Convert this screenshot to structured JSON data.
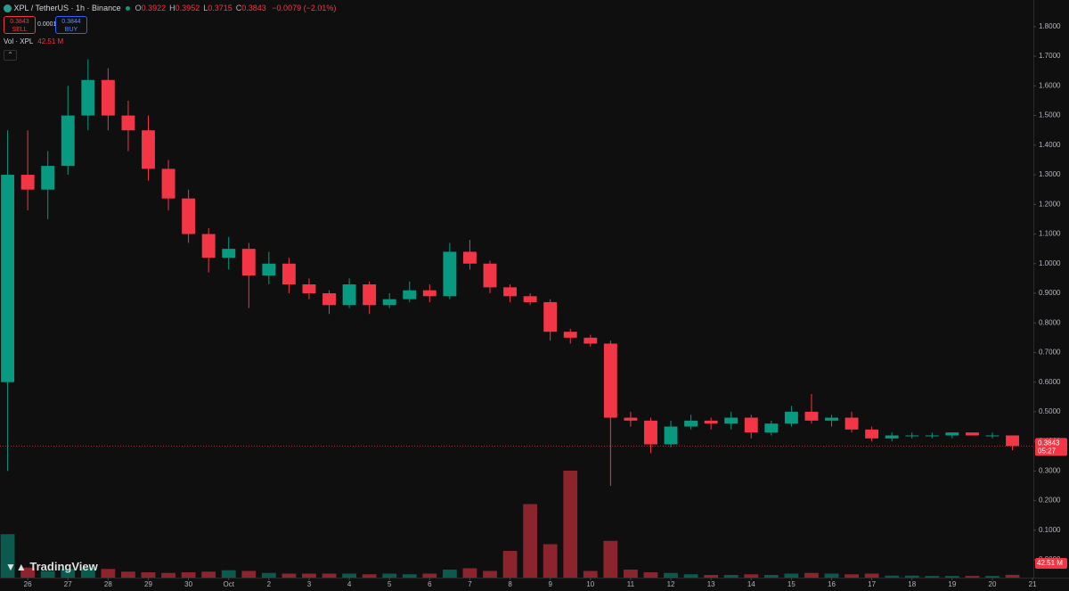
{
  "chart_data": {
    "type": "candlestick",
    "title": "XPL / TetherUS · 1h · Binance",
    "ohlc": [
      {
        "key": "O",
        "value": "0.3922"
      },
      {
        "key": "H",
        "value": "0.3952"
      },
      {
        "key": "L",
        "value": "0.3715"
      },
      {
        "key": "C",
        "value": "0.3843"
      }
    ],
    "change": "−0.0079 (−2.01%)",
    "sell": {
      "price": "0.3843",
      "label": "SELL"
    },
    "spread": "0.0001",
    "buy": {
      "price": "0.3844",
      "label": "BUY"
    },
    "volume_title": "Vol · XPL",
    "volume_value": "42.51 M",
    "last_price": "0.3843",
    "countdown": "05:27",
    "brand": "TradingView",
    "up_color": "#089981",
    "down_color": "#f23645",
    "x": [
      25.5,
      26,
      26.5,
      27,
      27.5,
      28,
      28.5,
      29,
      29.5,
      30,
      30.5,
      31,
      31.5,
      32,
      32.5,
      33,
      33.5,
      34,
      34.5,
      35,
      35.5,
      36,
      36.5,
      37,
      37.5,
      38,
      38.5,
      39,
      39.5,
      40,
      40.5,
      41,
      41.5,
      42,
      42.5,
      43,
      43.5,
      44,
      44.5,
      45,
      45.5,
      46,
      46.5,
      47,
      47.5,
      48,
      48.5,
      49,
      49.5,
      50,
      50.5
    ],
    "open": [
      0.6,
      1.3,
      1.25,
      1.33,
      1.5,
      1.62,
      1.5,
      1.45,
      1.32,
      1.22,
      1.1,
      1.02,
      1.05,
      0.96,
      1.0,
      0.93,
      0.9,
      0.86,
      0.93,
      0.86,
      0.88,
      0.91,
      0.89,
      1.04,
      1.0,
      0.92,
      0.89,
      0.87,
      0.77,
      0.75,
      0.73,
      0.48,
      0.47,
      0.39,
      0.45,
      0.47,
      0.46,
      0.48,
      0.43,
      0.46,
      0.5,
      0.47,
      0.48,
      0.44,
      0.41,
      0.42,
      0.42,
      0.42,
      0.43,
      0.42,
      0.42
    ],
    "high": [
      1.45,
      1.45,
      1.38,
      1.6,
      1.69,
      1.66,
      1.55,
      1.5,
      1.35,
      1.25,
      1.12,
      1.09,
      1.07,
      1.04,
      1.02,
      0.95,
      0.91,
      0.95,
      0.94,
      0.9,
      0.94,
      0.93,
      1.07,
      1.08,
      1.01,
      0.93,
      0.9,
      0.88,
      0.78,
      0.76,
      0.74,
      0.5,
      0.48,
      0.47,
      0.49,
      0.48,
      0.5,
      0.49,
      0.47,
      0.52,
      0.56,
      0.49,
      0.5,
      0.45,
      0.43,
      0.43,
      0.43,
      0.43,
      0.43,
      0.43,
      0.42
    ],
    "low": [
      0.3,
      1.18,
      1.15,
      1.3,
      1.45,
      1.45,
      1.38,
      1.28,
      1.18,
      1.07,
      0.97,
      0.98,
      0.85,
      0.93,
      0.9,
      0.88,
      0.83,
      0.85,
      0.83,
      0.85,
      0.87,
      0.87,
      0.88,
      0.98,
      0.9,
      0.87,
      0.86,
      0.74,
      0.73,
      0.72,
      0.25,
      0.45,
      0.36,
      0.38,
      0.44,
      0.44,
      0.44,
      0.41,
      0.42,
      0.45,
      0.46,
      0.45,
      0.43,
      0.4,
      0.4,
      0.41,
      0.41,
      0.41,
      0.42,
      0.41,
      0.37
    ],
    "close": [
      1.3,
      1.25,
      1.33,
      1.5,
      1.62,
      1.5,
      1.45,
      1.32,
      1.22,
      1.1,
      1.02,
      1.05,
      0.96,
      1.0,
      0.93,
      0.9,
      0.86,
      0.93,
      0.86,
      0.88,
      0.91,
      0.89,
      1.04,
      1.0,
      0.92,
      0.89,
      0.87,
      0.77,
      0.75,
      0.73,
      0.48,
      0.47,
      0.39,
      0.45,
      0.47,
      0.46,
      0.48,
      0.43,
      0.46,
      0.5,
      0.47,
      0.48,
      0.44,
      0.41,
      0.42,
      0.42,
      0.42,
      0.43,
      0.42,
      0.42,
      0.3843
    ],
    "volume": [
      650,
      150,
      100,
      130,
      150,
      130,
      90,
      80,
      70,
      80,
      90,
      110,
      100,
      70,
      60,
      60,
      60,
      60,
      50,
      60,
      50,
      60,
      120,
      140,
      100,
      400,
      1100,
      500,
      1600,
      100,
      550,
      120,
      80,
      70,
      50,
      40,
      40,
      50,
      40,
      60,
      70,
      60,
      50,
      60,
      30,
      30,
      25,
      25,
      25,
      25,
      42.51
    ],
    "volume_lim": [
      0,
      2400
    ],
    "xlim": [
      25.31,
      51.02
    ],
    "xticks": [
      {
        "value": 26,
        "label": "26"
      },
      {
        "value": 27,
        "label": "27"
      },
      {
        "value": 28,
        "label": "28"
      },
      {
        "value": 29,
        "label": "29"
      },
      {
        "value": 30,
        "label": "30"
      },
      {
        "value": 31,
        "label": "Oct"
      },
      {
        "value": 32,
        "label": "2"
      },
      {
        "value": 33,
        "label": "3"
      },
      {
        "value": 34,
        "label": "4"
      },
      {
        "value": 35,
        "label": "5"
      },
      {
        "value": 36,
        "label": "6"
      },
      {
        "value": 37,
        "label": "7"
      },
      {
        "value": 38,
        "label": "8"
      },
      {
        "value": 39,
        "label": "9"
      },
      {
        "value": 40,
        "label": "10"
      },
      {
        "value": 41,
        "label": "11"
      },
      {
        "value": 42,
        "label": "12"
      },
      {
        "value": 43,
        "label": "13"
      },
      {
        "value": 44,
        "label": "14"
      },
      {
        "value": 45,
        "label": "15"
      },
      {
        "value": 46,
        "label": "16"
      },
      {
        "value": 47,
        "label": "17"
      },
      {
        "value": 48,
        "label": "18"
      },
      {
        "value": 49,
        "label": "19"
      },
      {
        "value": 50,
        "label": "20"
      },
      {
        "value": 51,
        "label": "21"
      }
    ],
    "ylim": [
      -0.06,
      1.89
    ],
    "yticks": [
      {
        "value": 0,
        "label": "0.0000"
      },
      {
        "value": 0.1,
        "label": "0.1000"
      },
      {
        "value": 0.2,
        "label": "0.2000"
      },
      {
        "value": 0.3,
        "label": "0.3000"
      },
      {
        "value": 0.4,
        "label": "0.4000"
      },
      {
        "value": 0.5,
        "label": "0.5000"
      },
      {
        "value": 0.6,
        "label": "0.6000"
      },
      {
        "value": 0.7,
        "label": "0.7000"
      },
      {
        "value": 0.8,
        "label": "0.8000"
      },
      {
        "value": 0.9,
        "label": "0.9000"
      },
      {
        "value": 1,
        "label": "1.0000"
      },
      {
        "value": 1.1,
        "label": "1.1000"
      },
      {
        "value": 1.2,
        "label": "1.2000"
      },
      {
        "value": 1.3,
        "label": "1.3000"
      },
      {
        "value": 1.4,
        "label": "1.4000"
      },
      {
        "value": 1.5,
        "label": "1.5000"
      },
      {
        "value": 1.6,
        "label": "1.6000"
      },
      {
        "value": 1.7,
        "label": "1.7000"
      },
      {
        "value": 1.8,
        "label": "1.8000"
      }
    ]
  }
}
